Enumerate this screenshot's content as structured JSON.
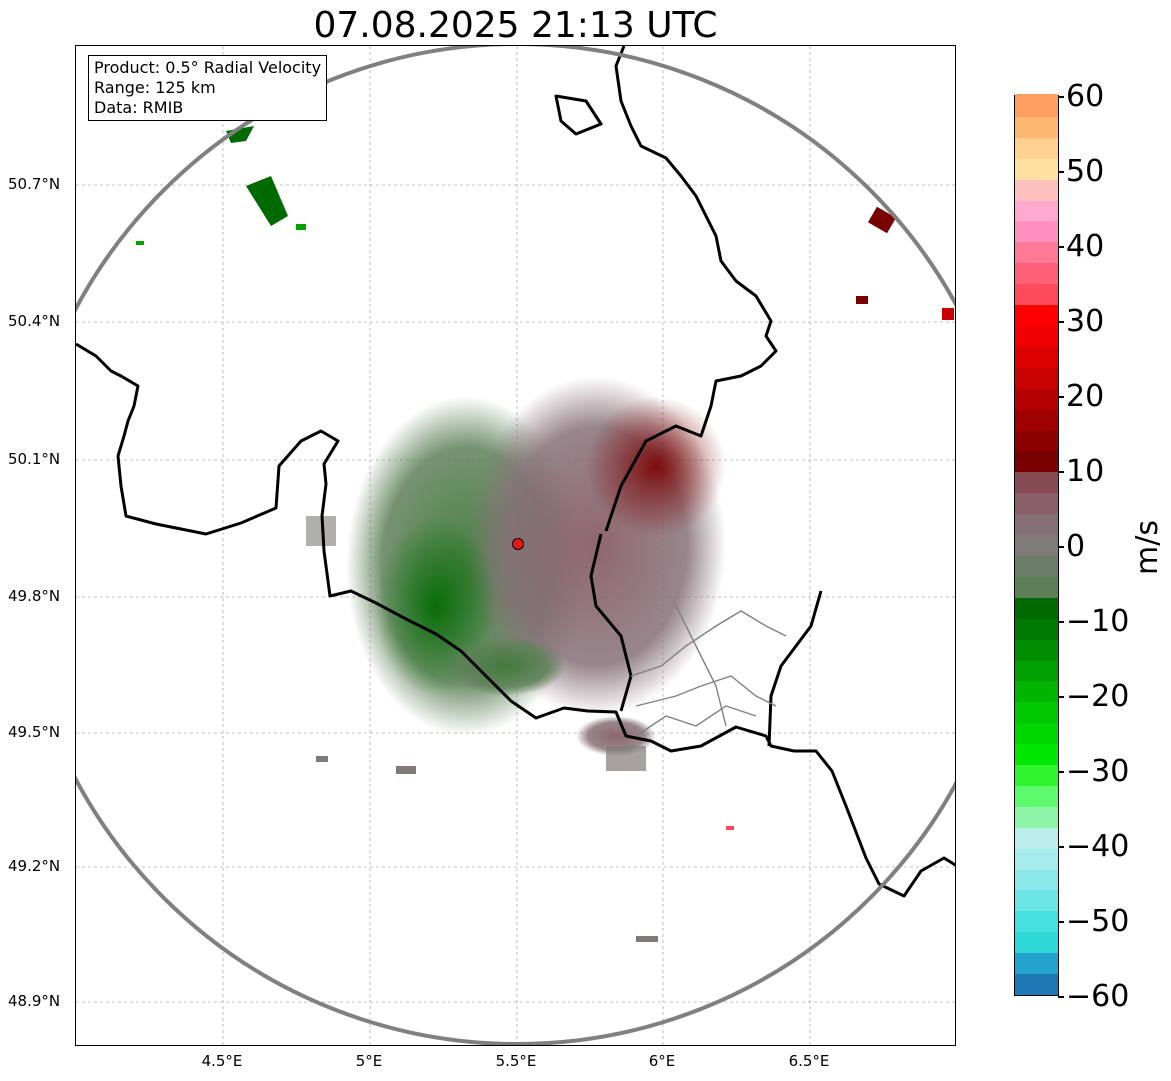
{
  "title": "07.08.2025 21:13 UTC",
  "info": {
    "product": "Product: 0.5° Radial Velocity",
    "range": "Range: 125 km",
    "source": "Data: RMIB"
  },
  "axes": {
    "lat_labels": [
      "50.7°N",
      "50.4°N",
      "50.1°N",
      "49.8°N",
      "49.5°N",
      "49.2°N",
      "48.9°N"
    ],
    "lon_labels": [
      "4.5°E",
      "5°E",
      "5.5°E",
      "6°E",
      "6.5°E"
    ]
  },
  "radar": {
    "site_color": "#e31a1c",
    "range_ring_color": "#808080"
  },
  "colorbar": {
    "unit": "m/s",
    "ticks": [
      "60",
      "50",
      "40",
      "30",
      "20",
      "10",
      "0",
      "−10",
      "−20",
      "−30",
      "−40",
      "−50",
      "−60"
    ],
    "vmin": -60,
    "vmax": 60,
    "colors_bottom_to_top": [
      "#1f78b4",
      "#23a2cc",
      "#2ed8d8",
      "#44e0e0",
      "#6ae4e4",
      "#8ce8e8",
      "#a6ecec",
      "#bceeee",
      "#8ef5a8",
      "#5cfa6c",
      "#2ef52e",
      "#00e600",
      "#00d600",
      "#00c800",
      "#00b400",
      "#00a000",
      "#008c00",
      "#007a00",
      "#006a00",
      "#5e8058",
      "#6b7c68",
      "#7f7a78",
      "#867078",
      "#8a5e66",
      "#864a52",
      "#780000",
      "#8c0000",
      "#a00000",
      "#b40000",
      "#c80000",
      "#dc0000",
      "#f00000",
      "#ff0000",
      "#ff4a5a",
      "#ff6078",
      "#ff7a96",
      "#ff90c0",
      "#ffa8d0",
      "#ffc0c0",
      "#ffe0a0",
      "#ffd090",
      "#ffb870",
      "#ffa060"
    ]
  }
}
